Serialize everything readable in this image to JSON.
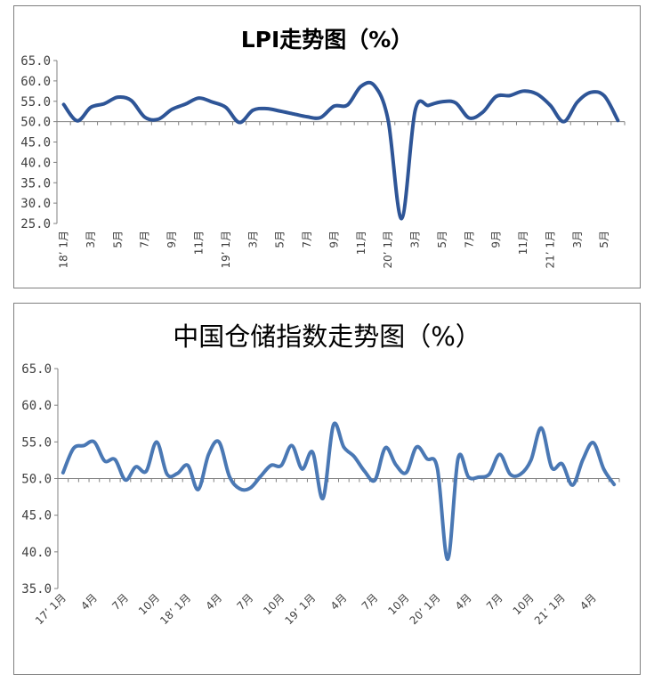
{
  "chart_data": [
    {
      "type": "line",
      "title": "LPI走势图（%）",
      "xlabel": "",
      "ylabel": "",
      "ylim": [
        25.0,
        65.0
      ],
      "y_ticks": [
        "25.0",
        "30.0",
        "35.0",
        "40.0",
        "45.0",
        "50.0",
        "55.0",
        "60.0",
        "65.0"
      ],
      "x_tick_labels": [
        "18’ 1月",
        "3月",
        "5月",
        "7月",
        "9月",
        "11月",
        "19’ 1月",
        "3月",
        "5月",
        "7月",
        "9月",
        "11月",
        "20’ 1月",
        "3月",
        "5月",
        "7月",
        "9月",
        "11月",
        "21’ 1月",
        "3月",
        "5月"
      ],
      "baseline": 50.0,
      "grid": false,
      "legend": "none",
      "line_color": "#2E5597",
      "values": [
        54.2,
        50.2,
        53.5,
        54.4,
        56.0,
        55.2,
        51.1,
        50.6,
        53.0,
        54.3,
        55.8,
        54.8,
        53.5,
        49.8,
        52.8,
        53.2,
        52.6,
        51.9,
        51.2,
        51.0,
        53.8,
        54.1,
        58.7,
        58.8,
        50.4,
        26.2,
        52.7,
        54.0,
        54.9,
        54.6,
        50.9,
        52.3,
        56.2,
        56.4,
        57.5,
        56.8,
        54.0,
        50.0,
        54.8,
        57.2,
        56.3,
        50.3
      ]
    },
    {
      "type": "line",
      "title": "中国仓储指数走势图（%）",
      "xlabel": "",
      "ylabel": "",
      "ylim": [
        35.0,
        65.0
      ],
      "y_ticks": [
        "35.0",
        "40.0",
        "45.0",
        "50.0",
        "55.0",
        "60.0",
        "65.0"
      ],
      "x_tick_labels": [
        "17’ 1月",
        "4月",
        "7月",
        "10月",
        "18’ 1月",
        "4月",
        "7月",
        "10月",
        "19’ 1月",
        "4月",
        "7月",
        "10月",
        "20’ 1月",
        "4月",
        "7月",
        "10月",
        "21’ 1月",
        "4月"
      ],
      "baseline": 50.0,
      "grid": false,
      "legend": "none",
      "line_color": "#4A78B4",
      "values": [
        50.8,
        54.1,
        54.5,
        55.0,
        52.4,
        52.6,
        49.8,
        51.6,
        51.0,
        55.0,
        50.6,
        50.7,
        51.8,
        48.5,
        53.3,
        55.0,
        50.3,
        48.6,
        48.7,
        50.3,
        51.8,
        51.8,
        54.5,
        51.3,
        53.6,
        47.3,
        57.3,
        54.3,
        53.0,
        51.0,
        49.8,
        54.2,
        51.9,
        50.8,
        54.3,
        52.7,
        51.4,
        39.0,
        52.8,
        50.2,
        50.2,
        50.6,
        53.3,
        50.6,
        50.6,
        52.5,
        56.9,
        51.5,
        52.0,
        49.1,
        52.6,
        54.9,
        51.3,
        49.2
      ]
    }
  ]
}
